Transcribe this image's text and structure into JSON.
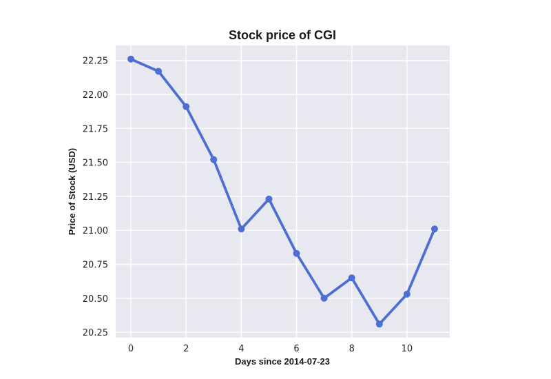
{
  "chart_data": {
    "type": "line",
    "title": "Stock price of CGI",
    "xlabel": "Days since 2014-07-23",
    "ylabel": "Price of Stock (USD)",
    "x": [
      0,
      1,
      2,
      3,
      4,
      5,
      6,
      7,
      8,
      9,
      10,
      11
    ],
    "series": [
      {
        "values": [
          22.26,
          22.17,
          21.91,
          21.52,
          21.01,
          21.23,
          20.83,
          20.5,
          20.65,
          20.31,
          20.53,
          21.01
        ]
      }
    ],
    "xlim": [
      -0.55,
      11.55
    ],
    "ylim": [
      20.21,
      22.36
    ],
    "xticks": [
      0,
      2,
      4,
      6,
      8,
      10
    ],
    "xtick_labels": [
      "0",
      "2",
      "4",
      "6",
      "8",
      "10"
    ],
    "yticks": [
      20.25,
      20.5,
      20.75,
      21.0,
      21.25,
      21.5,
      21.75,
      22.0,
      22.25
    ],
    "ytick_labels": [
      "20.25",
      "20.50",
      "20.75",
      "21.00",
      "21.25",
      "21.50",
      "21.75",
      "22.00",
      "22.25"
    ],
    "grid": true,
    "colors": {
      "line": "#4c6fd1",
      "plot_background": "#e8e8f0",
      "grid": "#ffffff"
    }
  }
}
